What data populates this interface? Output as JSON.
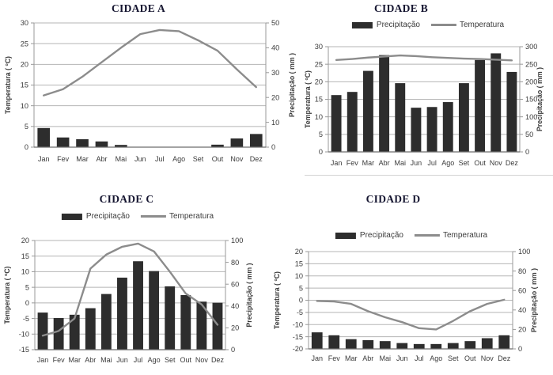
{
  "figure": {
    "background": "#ffffff"
  },
  "colors": {
    "bar": "#2d2d2d",
    "line": "#8c8c8c",
    "grid": "#b5b5b5",
    "axis": "#999999",
    "axis_bottom": "#6e6e6e",
    "text": "#3b3b3b",
    "title_text": "#151530"
  },
  "legend": {
    "precipitation": "Precipitação",
    "temperature": "Temperatura"
  },
  "months": [
    "Jan",
    "Fev",
    "Mar",
    "Abr",
    "Mai",
    "Jun",
    "Jul",
    "Ago",
    "Set",
    "Out",
    "Nov",
    "Dez"
  ],
  "chart_data": [
    {
      "id": "cidade-a",
      "type": "combo",
      "title": "CIDADE A",
      "show_legend": false,
      "categories": [
        "Jan",
        "Fev",
        "Mar",
        "Abr",
        "Mai",
        "Jun",
        "Jul",
        "Ago",
        "Set",
        "Out",
        "Nov",
        "Dez"
      ],
      "left_axis": {
        "label": "Temperatura ( ºC)",
        "min": 0,
        "max": 30,
        "step": 5
      },
      "right_axis": {
        "label": "Precipitação ( mm )",
        "min": 0,
        "max": 50,
        "step": 10
      },
      "series": [
        {
          "name": "Precipitação",
          "type": "bar",
          "axis": "right",
          "values": [
            7.7,
            3.9,
            3.2,
            2.3,
            0.9,
            0,
            0,
            0,
            0,
            1,
            3.5,
            5.3
          ]
        },
        {
          "name": "Temperatura",
          "type": "line",
          "axis": "left",
          "values": [
            12.5,
            14,
            17,
            20.5,
            24,
            27.3,
            28.3,
            28,
            25.8,
            23.3,
            18.8,
            14.5
          ]
        }
      ]
    },
    {
      "id": "cidade-b",
      "type": "combo",
      "title": "CIDADE B",
      "show_legend": true,
      "categories": [
        "Jan",
        "Fev",
        "Mar",
        "Abr",
        "Mai",
        "Jun",
        "Jul",
        "Ago",
        "Set",
        "Out",
        "Nov",
        "Dez"
      ],
      "left_axis": {
        "label": "Temperatura ( ºC)",
        "min": 0,
        "max": 30,
        "step": 5
      },
      "right_axis": {
        "label": "Precipitação ( mm )",
        "min": 0,
        "max": 300,
        "step": 50
      },
      "series": [
        {
          "name": "Precipitação",
          "type": "bar",
          "axis": "right",
          "values": [
            162,
            171,
            231,
            276,
            196,
            126,
            128,
            142,
            196,
            262,
            281,
            228
          ]
        },
        {
          "name": "Temperatura",
          "type": "line",
          "axis": "left",
          "values": [
            26.2,
            26.5,
            26.9,
            27.2,
            27.5,
            27.3,
            27.0,
            26.8,
            26.6,
            26.5,
            26.3,
            26.1
          ]
        }
      ]
    },
    {
      "id": "cidade-c",
      "type": "combo",
      "title": "CIDADE C",
      "show_legend": true,
      "categories": [
        "Jan",
        "Fev",
        "Mar",
        "Abr",
        "Mai",
        "Jun",
        "Jul",
        "Ago",
        "Set",
        "Out",
        "Nov",
        "Dez"
      ],
      "left_axis": {
        "label": "Temperatura ( ºC)",
        "min": -15,
        "max": 20,
        "step": 5
      },
      "right_axis": {
        "label": "Precipitação ( mm )",
        "min": 0,
        "max": 100,
        "step": 20
      },
      "series": [
        {
          "name": "Precipitação",
          "type": "bar",
          "axis": "right",
          "values": [
            34,
            29,
            32,
            38,
            51,
            66,
            81,
            72,
            58,
            50,
            44,
            43
          ]
        },
        {
          "name": "Temperatura",
          "type": "line",
          "axis": "left",
          "values": [
            -10.5,
            -9,
            -5,
            11,
            15.5,
            18,
            19,
            16.5,
            10,
            3,
            -0.5,
            -7
          ]
        }
      ]
    },
    {
      "id": "cidade-d",
      "type": "combo",
      "title": "CIDADE D",
      "show_legend": true,
      "categories": [
        "Jan",
        "Fev",
        "Mar",
        "Abr",
        "Mai",
        "Jun",
        "Jul",
        "Ago",
        "Set",
        "Out",
        "Nov",
        "Dez"
      ],
      "left_axis": {
        "label": "Temperatura ( ºC)",
        "min": -20,
        "max": 20,
        "step": 5
      },
      "right_axis": {
        "label": "Precipitação ( mm )",
        "min": 0,
        "max": 100,
        "step": 20
      },
      "series": [
        {
          "name": "Precipitação",
          "type": "bar",
          "axis": "right",
          "values": [
            17,
            14,
            10,
            9,
            8,
            6,
            5,
            5,
            6,
            8,
            11,
            14
          ]
        },
        {
          "name": "Temperatura",
          "type": "line",
          "axis": "left",
          "values": [
            -0.3,
            -0.5,
            -1.5,
            -4.5,
            -7,
            -9,
            -11.5,
            -12,
            -8.5,
            -4.5,
            -1.5,
            0.2
          ]
        }
      ]
    }
  ]
}
